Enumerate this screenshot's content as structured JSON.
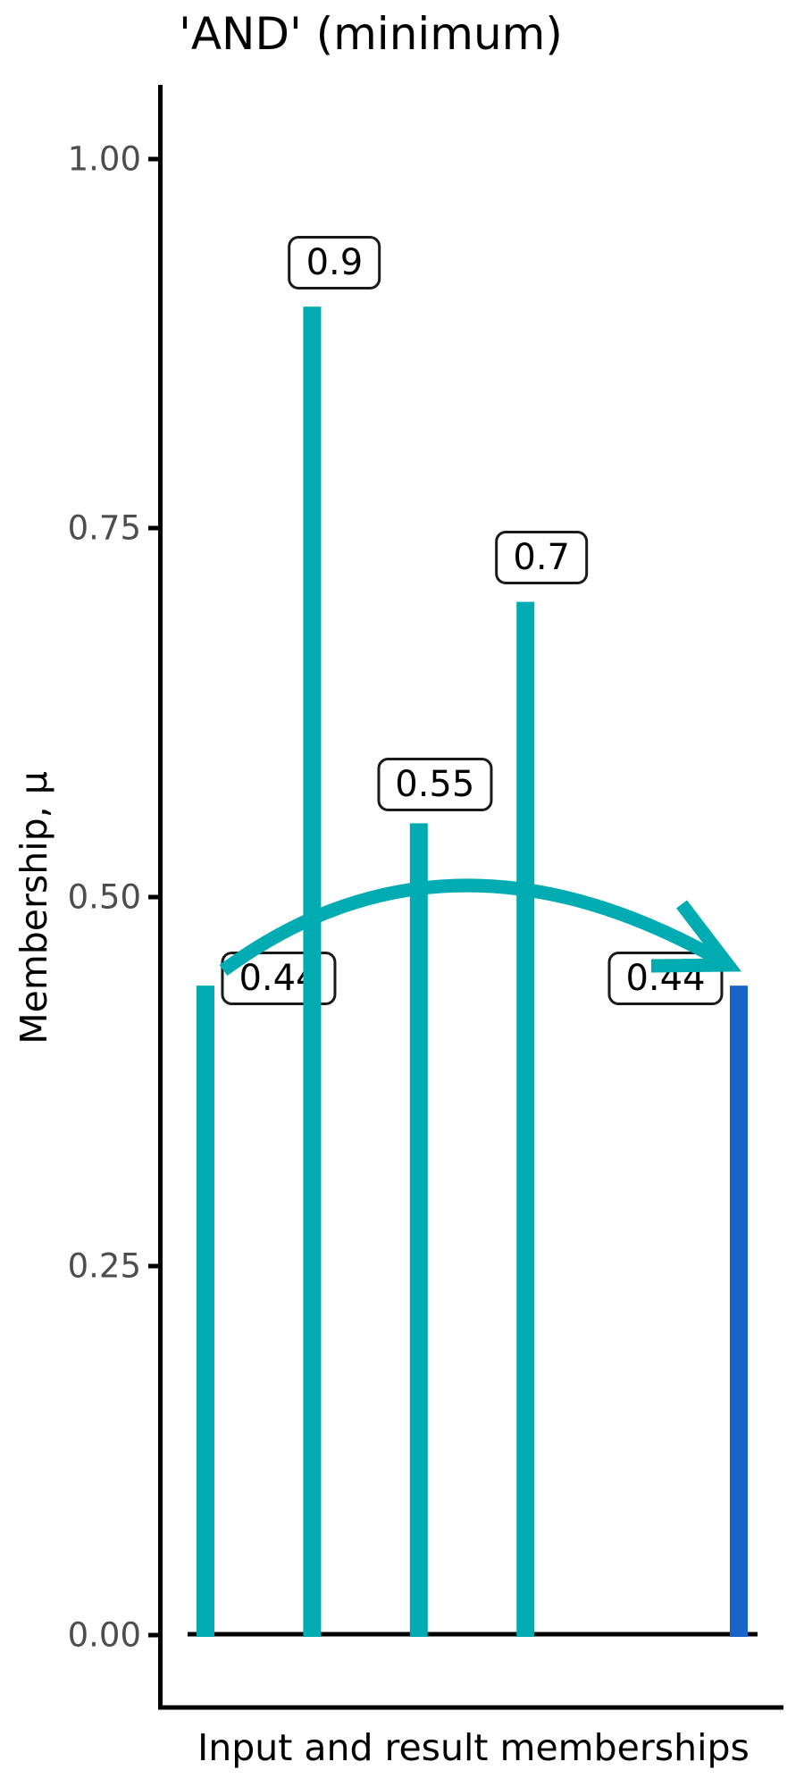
{
  "chart": {
    "title": "'AND' (minimum)",
    "ylabel": "Membership, μ",
    "xlabel": "Input and result memberships"
  },
  "colors": {
    "input_bars": "#00acb1",
    "result_bar": "#1a63c9",
    "axis": "#000000",
    "tick_label": "#4d4d4d",
    "label_box_border": "#1a1a1a",
    "label_box_fill": "#ffffff"
  },
  "chart_data": {
    "type": "bar",
    "title": "'AND' (minimum)",
    "xlabel": "Input and result memberships",
    "ylabel": "Membership, μ",
    "ylim": [
      0,
      1.05
    ],
    "grid": false,
    "legend": "none",
    "y_ticks": [
      {
        "value": 0.0,
        "label": "0.00"
      },
      {
        "value": 0.25,
        "label": "0.25"
      },
      {
        "value": 0.5,
        "label": "0.50"
      },
      {
        "value": 0.75,
        "label": "0.75"
      },
      {
        "value": 1.0,
        "label": "1.00"
      }
    ],
    "bars": [
      {
        "x": 1,
        "value": 0.44,
        "label": "0.44",
        "series": "input"
      },
      {
        "x": 2,
        "value": 0.9,
        "label": "0.9",
        "series": "input"
      },
      {
        "x": 3,
        "value": 0.55,
        "label": "0.55",
        "series": "input"
      },
      {
        "x": 4,
        "value": 0.7,
        "label": "0.7",
        "series": "input"
      },
      {
        "x": 6,
        "value": 0.44,
        "label": "0.44",
        "series": "result"
      }
    ],
    "annotation_arrow": {
      "type": "arrow",
      "from": {
        "x": 1,
        "value": 0.44
      },
      "to": {
        "x": 6,
        "value": 0.44
      }
    }
  }
}
